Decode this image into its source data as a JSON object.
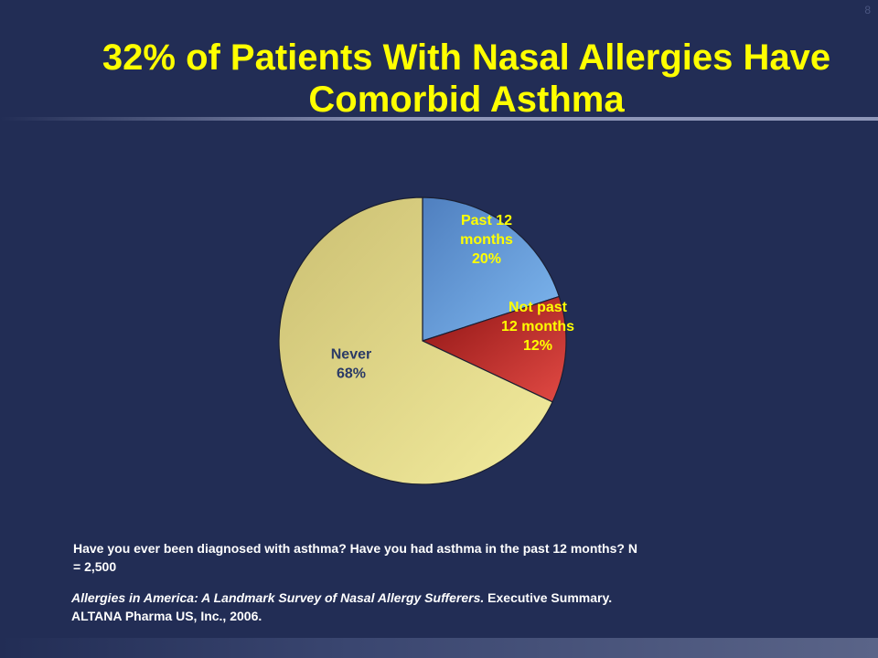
{
  "slide": {
    "number": "8",
    "title_line1": "32% of Patients With Nasal Allergies Have",
    "title_line2": "Comorbid Asthma"
  },
  "chart_data": {
    "type": "pie",
    "title": "",
    "slices": [
      {
        "label_lines": [
          "Past 12",
          "months",
          "20%"
        ],
        "value": 20,
        "color": "#6aa5e4",
        "label_color": "#ffff00"
      },
      {
        "label_lines": [
          "Not past",
          "12 months",
          "12%"
        ],
        "value": 12,
        "color": "#c0312f",
        "label_color": "#ffff00"
      },
      {
        "label_lines": [
          "Never",
          "68%"
        ],
        "value": 68,
        "color": "#e9e09a",
        "label_color": "#2b3a66"
      }
    ],
    "start_angle_deg": 0,
    "direction": "clockwise"
  },
  "footer": {
    "question": "Have you ever been diagnosed with asthma? Have you had asthma in the past 12 months? N = 2,500",
    "citation_italic": "Allergies in America: A Landmark Survey of Nasal Allergy Sufferers.",
    "citation_rest": " Executive Summary. ALTANA Pharma US, Inc., 2006."
  }
}
